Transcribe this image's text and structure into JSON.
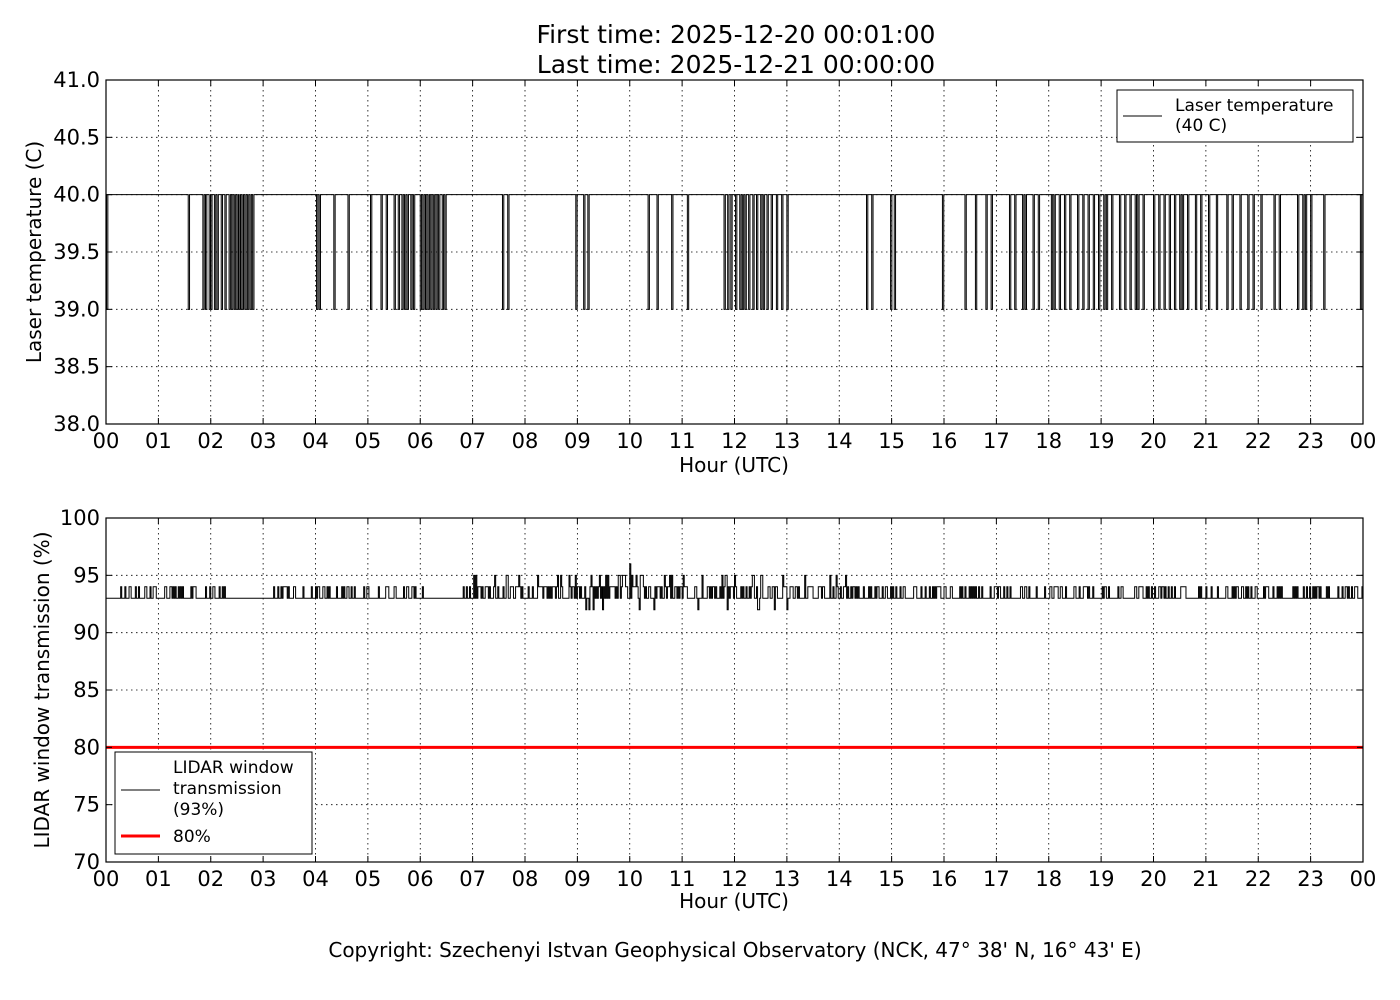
{
  "page": {
    "title_line1": "First time: 2025-12-20 00:01:00",
    "title_line2": "Last time: 2025-12-21 00:00:00",
    "copyright": "Copyright: Szechenyi Istvan Geophysical Observatory (NCK, 47° 38' N, 16° 43' E)"
  },
  "chart_data": [
    {
      "type": "line",
      "id": "laser-temperature",
      "xlabel": "Hour (UTC)",
      "ylabel": "Laser temperature (C)",
      "xlim": [
        0,
        24
      ],
      "ylim": [
        38.0,
        41.0
      ],
      "x_ticks": [
        "00",
        "01",
        "02",
        "03",
        "04",
        "05",
        "06",
        "07",
        "08",
        "09",
        "10",
        "11",
        "12",
        "13",
        "14",
        "15",
        "16",
        "17",
        "18",
        "19",
        "20",
        "21",
        "22",
        "23",
        "00"
      ],
      "y_ticks": [
        "38.0",
        "38.5",
        "39.0",
        "39.5",
        "40.0",
        "40.5",
        "41.0"
      ],
      "grid": true,
      "legend_position": "top-right",
      "series": [
        {
          "name": "Laser temperature (40 C)",
          "legend_lines": [
            "Laser temperature",
            "(40 C)"
          ],
          "color": "#000000",
          "base_value": 40.0,
          "dip_value": 39.0,
          "dip_hours": [
            0.01,
            1.57,
            1.85,
            1.9,
            1.97,
            2.0,
            2.07,
            2.12,
            2.2,
            2.27,
            2.35,
            2.4,
            2.45,
            2.5,
            2.53,
            2.57,
            2.6,
            2.65,
            2.7,
            2.75,
            2.8,
            4.02,
            4.07,
            4.35,
            4.62,
            5.05,
            5.25,
            5.35,
            5.5,
            5.58,
            5.65,
            5.7,
            5.75,
            5.82,
            5.87,
            6.0,
            6.05,
            6.1,
            6.15,
            6.2,
            6.25,
            6.3,
            6.35,
            6.42,
            6.47,
            7.57,
            7.67,
            8.97,
            9.12,
            9.2,
            10.35,
            10.52,
            10.8,
            11.1,
            11.8,
            11.87,
            11.93,
            12.02,
            12.1,
            12.15,
            12.2,
            12.27,
            12.35,
            12.42,
            12.5,
            12.55,
            12.62,
            12.7,
            12.8,
            12.9,
            13.0,
            14.52,
            14.62,
            14.98,
            15.05,
            15.97,
            16.4,
            16.6,
            16.8,
            16.9,
            17.25,
            17.35,
            17.5,
            17.55,
            17.7,
            17.8,
            18.05,
            18.1,
            18.2,
            18.3,
            18.4,
            18.55,
            18.65,
            18.75,
            18.85,
            18.95,
            19.05,
            19.1,
            19.2,
            19.35,
            19.45,
            19.55,
            19.65,
            19.7,
            19.8,
            20.0,
            20.1,
            20.2,
            20.3,
            20.4,
            20.5,
            20.55,
            20.65,
            20.8,
            20.9,
            21.05,
            21.2,
            21.4,
            21.5,
            21.65,
            21.8,
            21.9,
            22.05,
            22.3,
            22.4,
            22.75,
            22.85,
            22.9,
            23.0,
            23.25,
            23.95
          ]
        }
      ]
    },
    {
      "type": "line",
      "id": "lidar-window-transmission",
      "xlabel": "Hour (UTC)",
      "ylabel": "LIDAR window transmission (%)",
      "xlim": [
        0,
        24
      ],
      "ylim": [
        70,
        100
      ],
      "x_ticks": [
        "00",
        "01",
        "02",
        "03",
        "04",
        "05",
        "06",
        "07",
        "08",
        "09",
        "10",
        "11",
        "12",
        "13",
        "14",
        "15",
        "16",
        "17",
        "18",
        "19",
        "20",
        "21",
        "22",
        "23",
        "00"
      ],
      "y_ticks": [
        "70",
        "75",
        "80",
        "85",
        "90",
        "95",
        "100"
      ],
      "grid": true,
      "legend_position": "bottom-left",
      "series": [
        {
          "name": "LIDAR window transmission (93%)",
          "legend_lines": [
            "LIDAR window",
            "transmission",
            "(93%)"
          ],
          "color": "#000000",
          "base_value": 93,
          "noise_segments": [
            {
              "from": 0.25,
              "to": 2.4,
              "levels": [
                93,
                94
              ],
              "density": 0.55
            },
            {
              "from": 3.2,
              "to": 6.05,
              "levels": [
                93,
                94
              ],
              "density": 0.6
            },
            {
              "from": 6.8,
              "to": 9.0,
              "levels": [
                93,
                94,
                95
              ],
              "density": 0.75
            },
            {
              "from": 9.0,
              "to": 13.0,
              "levels": [
                92,
                93,
                94,
                95
              ],
              "density": 0.85
            },
            {
              "from": 13.0,
              "to": 14.2,
              "levels": [
                93,
                94,
                95
              ],
              "density": 0.7
            },
            {
              "from": 14.2,
              "to": 24.0,
              "levels": [
                93,
                94
              ],
              "density": 0.6
            }
          ],
          "extremes": [
            [
              10.0,
              96
            ],
            [
              10.45,
              92
            ],
            [
              11.3,
              92
            ],
            [
              11.85,
              92
            ],
            [
              13.0,
              92
            ]
          ]
        },
        {
          "name": "80%",
          "color": "#ff0000",
          "constant": 80
        }
      ]
    }
  ]
}
